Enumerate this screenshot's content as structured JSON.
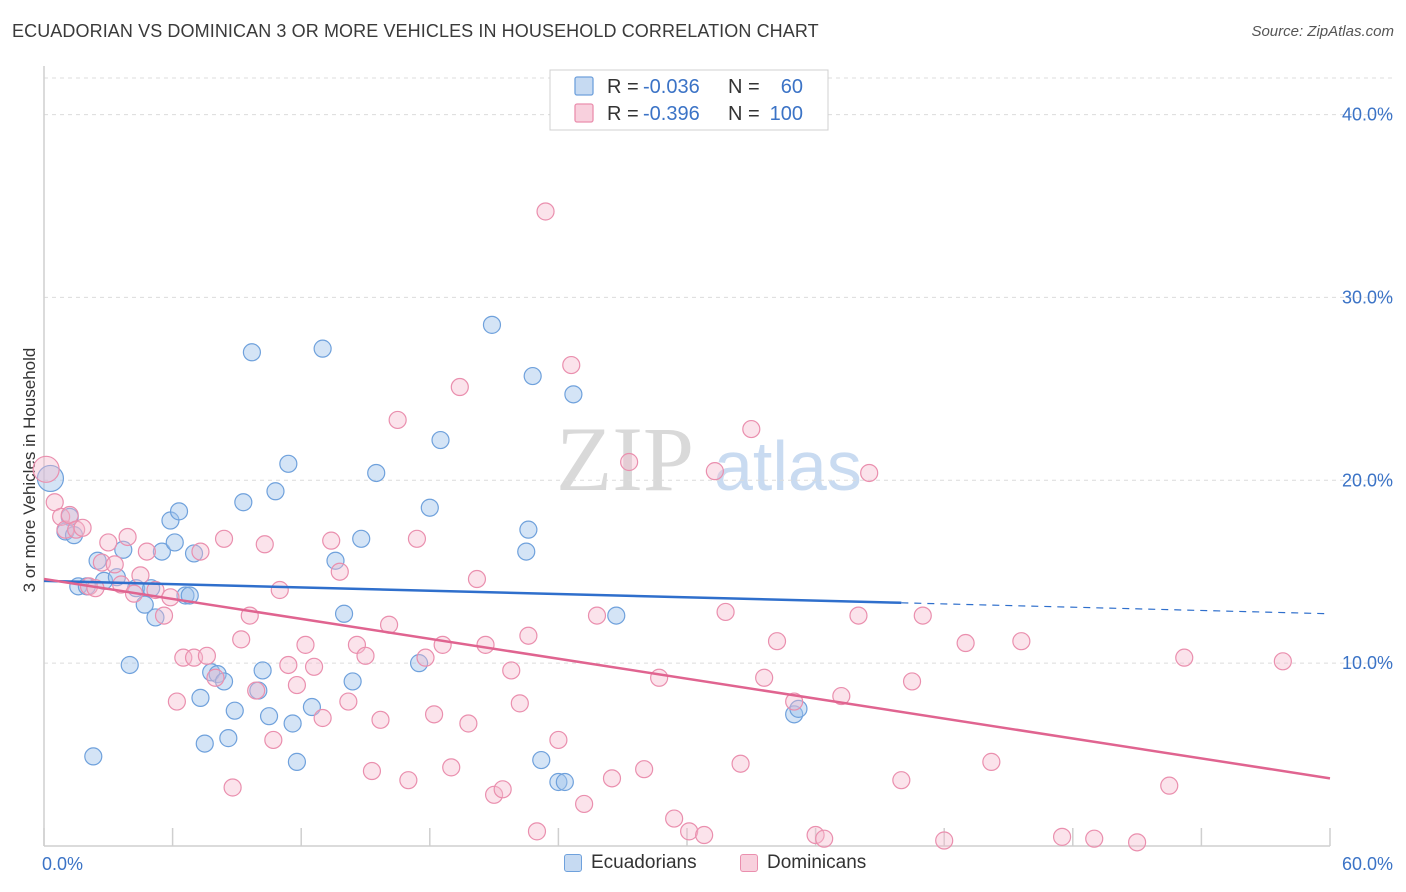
{
  "header": {
    "title": "ECUADORIAN VS DOMINICAN 3 OR MORE VEHICLES IN HOUSEHOLD CORRELATION CHART",
    "source": "Source: ZipAtlas.com"
  },
  "watermark": {
    "zip": "ZIP",
    "atlas": "atlas"
  },
  "legend_top": [
    {
      "r_label": "R =",
      "r_value": "-0.036",
      "n_label": "N =",
      "n_value": "60",
      "color": "#6fa1dc"
    },
    {
      "r_label": "R =",
      "r_value": "-0.396",
      "n_label": "N =",
      "n_value": "100",
      "color": "#ea8fae"
    }
  ],
  "legend_bottom": [
    {
      "label": "Ecuadorians",
      "color": "#6fa1dc"
    },
    {
      "label": "Dominicans",
      "color": "#ea8fae"
    }
  ],
  "chart_data": {
    "type": "scatter",
    "title": "ECUADORIAN VS DOMINICAN 3 OR MORE VEHICLES IN HOUSEHOLD CORRELATION CHART",
    "xlabel": "",
    "ylabel": "3 or more Vehicles in Household",
    "xlim": [
      0,
      60
    ],
    "ylim": [
      0,
      42
    ],
    "x_tick_labels": [
      "0.0%",
      "60.0%"
    ],
    "y_ticks": [
      10,
      20,
      30,
      40
    ],
    "y_tick_labels": [
      "10.0%",
      "20.0%",
      "30.0%",
      "40.0%"
    ],
    "grid": true,
    "legend_position": "top-center",
    "series": [
      {
        "name": "Ecuadorians",
        "color": "#6fa1dc",
        "trend": {
          "x": [
            0,
            40
          ],
          "y": [
            14.5,
            13.3
          ],
          "dashed_extension_to": [
            60,
            12.7
          ]
        },
        "points": [
          [
            0.3,
            20.1
          ],
          [
            1.0,
            17.2
          ],
          [
            1.2,
            18.0
          ],
          [
            1.4,
            17.0
          ],
          [
            1.6,
            14.2
          ],
          [
            2.0,
            14.2
          ],
          [
            2.3,
            4.9
          ],
          [
            2.5,
            15.6
          ],
          [
            2.8,
            14.5
          ],
          [
            3.4,
            14.7
          ],
          [
            3.7,
            16.2
          ],
          [
            4.0,
            9.9
          ],
          [
            4.3,
            14.1
          ],
          [
            4.7,
            13.2
          ],
          [
            5.0,
            14.1
          ],
          [
            5.2,
            12.5
          ],
          [
            5.5,
            16.1
          ],
          [
            5.9,
            17.8
          ],
          [
            6.1,
            16.6
          ],
          [
            6.3,
            18.3
          ],
          [
            6.6,
            13.7
          ],
          [
            6.8,
            13.7
          ],
          [
            7.0,
            16.0
          ],
          [
            7.3,
            8.1
          ],
          [
            7.5,
            5.6
          ],
          [
            7.8,
            9.5
          ],
          [
            8.1,
            9.4
          ],
          [
            8.4,
            9.0
          ],
          [
            8.6,
            5.9
          ],
          [
            8.9,
            7.4
          ],
          [
            9.3,
            18.8
          ],
          [
            9.7,
            27.0
          ],
          [
            10.0,
            8.5
          ],
          [
            10.2,
            9.6
          ],
          [
            10.5,
            7.1
          ],
          [
            10.8,
            19.4
          ],
          [
            11.4,
            20.9
          ],
          [
            11.6,
            6.7
          ],
          [
            11.8,
            4.6
          ],
          [
            12.5,
            7.6
          ],
          [
            13.0,
            27.2
          ],
          [
            13.6,
            15.6
          ],
          [
            14.0,
            12.7
          ],
          [
            14.4,
            9.0
          ],
          [
            14.8,
            16.8
          ],
          [
            15.5,
            20.4
          ],
          [
            17.5,
            10.0
          ],
          [
            18.5,
            22.2
          ],
          [
            18.0,
            18.5
          ],
          [
            20.9,
            28.5
          ],
          [
            22.5,
            16.1
          ],
          [
            22.6,
            17.3
          ],
          [
            22.8,
            25.7
          ],
          [
            23.2,
            4.7
          ],
          [
            24.0,
            3.5
          ],
          [
            24.3,
            3.5
          ],
          [
            24.7,
            24.7
          ],
          [
            26.7,
            12.6
          ],
          [
            35.0,
            7.2
          ],
          [
            35.2,
            7.5
          ]
        ]
      },
      {
        "name": "Dominicans",
        "color": "#ea8fae",
        "trend": {
          "x": [
            0,
            60
          ],
          "y": [
            14.6,
            3.7
          ]
        },
        "points": [
          [
            0.1,
            20.6
          ],
          [
            0.5,
            18.8
          ],
          [
            0.8,
            18.0
          ],
          [
            1.0,
            17.3
          ],
          [
            1.2,
            18.1
          ],
          [
            1.5,
            17.3
          ],
          [
            1.8,
            17.4
          ],
          [
            2.1,
            14.2
          ],
          [
            2.4,
            14.1
          ],
          [
            2.7,
            15.5
          ],
          [
            3.0,
            16.6
          ],
          [
            3.3,
            15.4
          ],
          [
            3.6,
            14.3
          ],
          [
            3.9,
            16.9
          ],
          [
            4.2,
            13.8
          ],
          [
            4.5,
            14.8
          ],
          [
            4.8,
            16.1
          ],
          [
            5.2,
            14.0
          ],
          [
            5.6,
            12.6
          ],
          [
            5.9,
            13.6
          ],
          [
            6.2,
            7.9
          ],
          [
            6.5,
            10.3
          ],
          [
            7.0,
            10.3
          ],
          [
            7.3,
            16.1
          ],
          [
            7.6,
            10.4
          ],
          [
            8.0,
            9.2
          ],
          [
            8.4,
            16.8
          ],
          [
            8.8,
            3.2
          ],
          [
            9.2,
            11.3
          ],
          [
            9.6,
            12.6
          ],
          [
            9.9,
            8.5
          ],
          [
            10.3,
            16.5
          ],
          [
            10.7,
            5.8
          ],
          [
            11.0,
            14.0
          ],
          [
            11.4,
            9.9
          ],
          [
            11.8,
            8.8
          ],
          [
            12.2,
            11.0
          ],
          [
            12.6,
            9.8
          ],
          [
            13.0,
            7.0
          ],
          [
            13.4,
            16.7
          ],
          [
            13.8,
            15.0
          ],
          [
            14.2,
            7.9
          ],
          [
            14.6,
            11.0
          ],
          [
            15.0,
            10.4
          ],
          [
            15.3,
            4.1
          ],
          [
            15.7,
            6.9
          ],
          [
            16.1,
            12.1
          ],
          [
            16.5,
            23.3
          ],
          [
            17.0,
            3.6
          ],
          [
            17.4,
            16.8
          ],
          [
            17.8,
            10.3
          ],
          [
            18.2,
            7.2
          ],
          [
            18.6,
            11.0
          ],
          [
            19.0,
            4.3
          ],
          [
            19.4,
            25.1
          ],
          [
            19.8,
            6.7
          ],
          [
            20.2,
            14.6
          ],
          [
            20.6,
            11.0
          ],
          [
            21.0,
            2.8
          ],
          [
            21.4,
            3.1
          ],
          [
            21.8,
            9.6
          ],
          [
            22.2,
            7.8
          ],
          [
            22.6,
            11.5
          ],
          [
            23.0,
            0.8
          ],
          [
            23.4,
            34.7
          ],
          [
            24.0,
            5.8
          ],
          [
            24.6,
            26.3
          ],
          [
            25.2,
            2.3
          ],
          [
            25.8,
            12.6
          ],
          [
            26.5,
            3.7
          ],
          [
            27.3,
            21.0
          ],
          [
            28.0,
            4.2
          ],
          [
            28.7,
            9.2
          ],
          [
            29.4,
            1.5
          ],
          [
            30.1,
            0.8
          ],
          [
            30.8,
            0.6
          ],
          [
            31.3,
            20.5
          ],
          [
            31.8,
            12.8
          ],
          [
            32.5,
            4.5
          ],
          [
            33.0,
            22.8
          ],
          [
            33.6,
            9.2
          ],
          [
            34.2,
            11.2
          ],
          [
            35.0,
            7.9
          ],
          [
            36.0,
            0.6
          ],
          [
            36.4,
            0.4
          ],
          [
            37.2,
            8.2
          ],
          [
            38.0,
            12.6
          ],
          [
            38.5,
            20.4
          ],
          [
            40.0,
            3.6
          ],
          [
            40.5,
            9.0
          ],
          [
            41.0,
            12.6
          ],
          [
            42.0,
            0.3
          ],
          [
            43.0,
            11.1
          ],
          [
            44.2,
            4.6
          ],
          [
            45.6,
            11.2
          ],
          [
            47.5,
            0.5
          ],
          [
            49.0,
            0.4
          ],
          [
            51.0,
            0.2
          ],
          [
            52.5,
            3.3
          ],
          [
            53.2,
            10.3
          ],
          [
            57.8,
            10.1
          ]
        ]
      }
    ]
  }
}
